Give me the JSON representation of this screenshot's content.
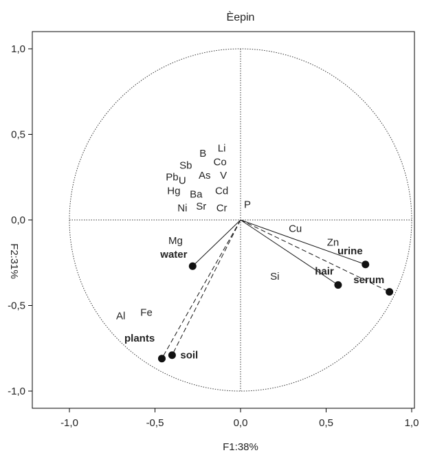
{
  "chart_data": {
    "type": "scatter",
    "title": "Èepin",
    "xlabel": "F1:38%",
    "ylabel": "F2:31%",
    "xlim": [
      -1.0,
      1.0
    ],
    "ylim": [
      -1.0,
      1.0
    ],
    "x_ticks": [
      {
        "value": -1.0,
        "label": "-1,0"
      },
      {
        "value": -0.5,
        "label": "-0,5"
      },
      {
        "value": 0.0,
        "label": "0,0"
      },
      {
        "value": 0.5,
        "label": "0,5"
      },
      {
        "value": 1.0,
        "label": "1,0"
      }
    ],
    "y_ticks": [
      {
        "value": 1.0,
        "label": "1,0"
      },
      {
        "value": 0.5,
        "label": "0,5"
      },
      {
        "value": 0.0,
        "label": "0,0"
      },
      {
        "value": -0.5,
        "label": "-0,5"
      },
      {
        "value": -1.0,
        "label": "-1,0"
      }
    ],
    "unit_circle": true,
    "variables": [
      {
        "label": "Li",
        "x": -0.11,
        "y": 0.4
      },
      {
        "label": "B",
        "x": -0.22,
        "y": 0.37
      },
      {
        "label": "Co",
        "x": -0.12,
        "y": 0.32
      },
      {
        "label": "Sb",
        "x": -0.32,
        "y": 0.3
      },
      {
        "label": "As",
        "x": -0.21,
        "y": 0.24
      },
      {
        "label": "V",
        "x": -0.1,
        "y": 0.24
      },
      {
        "label": "Pb",
        "x": -0.4,
        "y": 0.23
      },
      {
        "label": "U",
        "x": -0.34,
        "y": 0.21
      },
      {
        "label": "Hg",
        "x": -0.39,
        "y": 0.15
      },
      {
        "label": "Ba",
        "x": -0.26,
        "y": 0.13
      },
      {
        "label": "Cd",
        "x": -0.11,
        "y": 0.15
      },
      {
        "label": "Ni",
        "x": -0.34,
        "y": 0.05
      },
      {
        "label": "Sr",
        "x": -0.23,
        "y": 0.06
      },
      {
        "label": "Cr",
        "x": -0.11,
        "y": 0.05
      },
      {
        "label": "P",
        "x": 0.04,
        "y": 0.07
      },
      {
        "label": "Cu",
        "x": 0.32,
        "y": -0.07
      },
      {
        "label": "Zn",
        "x": 0.54,
        "y": -0.15
      },
      {
        "label": "Mg",
        "x": -0.38,
        "y": -0.14
      },
      {
        "label": "Si",
        "x": 0.2,
        "y": -0.35
      },
      {
        "label": "Al",
        "x": -0.7,
        "y": -0.58
      },
      {
        "label": "Fe",
        "x": -0.55,
        "y": -0.56
      }
    ],
    "samples": [
      {
        "label": "water",
        "x": -0.28,
        "y": -0.27,
        "label_x": -0.39,
        "label_y": -0.22,
        "line": "solid"
      },
      {
        "label": "urine",
        "x": 0.73,
        "y": -0.26,
        "label_x": 0.64,
        "label_y": -0.2,
        "line": "solid"
      },
      {
        "label": "hair",
        "x": 0.57,
        "y": -0.38,
        "label_x": 0.49,
        "label_y": -0.32,
        "line": "solid"
      },
      {
        "label": "serum",
        "x": 0.87,
        "y": -0.42,
        "label_x": 0.75,
        "label_y": -0.37,
        "line": "dashed"
      },
      {
        "label": "plants",
        "x": -0.46,
        "y": -0.81,
        "label_x": -0.59,
        "label_y": -0.71,
        "line": "dashed"
      },
      {
        "label": "soil",
        "x": -0.4,
        "y": -0.79,
        "label_x": -0.3,
        "label_y": -0.81,
        "line": "dashed"
      }
    ]
  }
}
